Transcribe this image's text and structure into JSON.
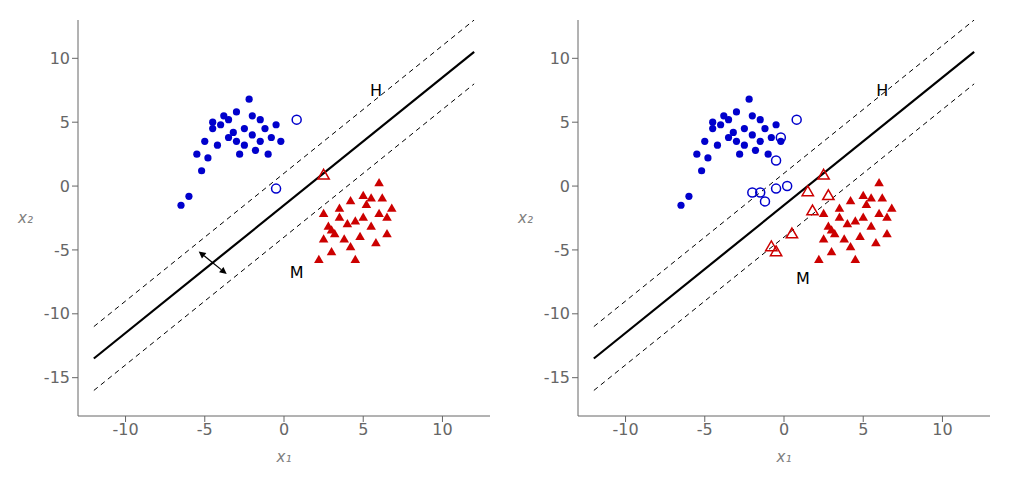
{
  "chart_data": [
    {
      "type": "scatter",
      "xlabel": "x₁",
      "ylabel": "x₂",
      "xlim": [
        -13,
        13
      ],
      "ylim": [
        -18,
        13
      ],
      "xticks": [
        -10,
        -5,
        0,
        5,
        10
      ],
      "yticks": [
        -15,
        -10,
        -5,
        0,
        5,
        10
      ],
      "grid": false,
      "series": [
        {
          "type": "line",
          "color": "#000000",
          "line_style": "solid",
          "values": [
            [
              -12,
              -13.5
            ],
            [
              12,
              10.5
            ]
          ]
        },
        {
          "type": "line",
          "color": "#000000",
          "line_style": "dashed",
          "values": [
            [
              -12,
              -11.0
            ],
            [
              12,
              13.0
            ]
          ]
        },
        {
          "type": "line",
          "color": "#000000",
          "line_style": "dashed",
          "values": [
            [
              -12,
              -16.0
            ],
            [
              12,
              8.0
            ]
          ]
        },
        {
          "type": "scatter",
          "color": "#0000CC",
          "marker": "circle",
          "values": [
            [
              -6.5,
              -1.5
            ],
            [
              -6.0,
              -0.8
            ],
            [
              -5.5,
              2.5
            ],
            [
              -5.2,
              1.2
            ],
            [
              -5.0,
              3.5
            ],
            [
              -4.8,
              2.2
            ],
            [
              -4.5,
              4.5
            ],
            [
              -4.5,
              5.0
            ],
            [
              -4.2,
              3.2
            ],
            [
              -4.0,
              4.8
            ],
            [
              -3.8,
              5.5
            ],
            [
              -3.5,
              3.8
            ],
            [
              -3.5,
              5.2
            ],
            [
              -3.2,
              4.2
            ],
            [
              -3.0,
              3.5
            ],
            [
              -3.0,
              5.8
            ],
            [
              -2.8,
              2.5
            ],
            [
              -2.5,
              4.5
            ],
            [
              -2.5,
              3.2
            ],
            [
              -2.2,
              6.8
            ],
            [
              -2.0,
              5.5
            ],
            [
              -2.0,
              4.0
            ],
            [
              -1.8,
              2.8
            ],
            [
              -1.5,
              5.2
            ],
            [
              -1.5,
              3.5
            ],
            [
              -1.2,
              4.5
            ],
            [
              -1.0,
              2.5
            ],
            [
              -0.8,
              3.8
            ],
            [
              -0.5,
              4.8
            ],
            [
              -0.2,
              3.5
            ]
          ]
        },
        {
          "type": "scatter",
          "color": "#CC0000",
          "marker": "triangle",
          "values": [
            [
              2.2,
              -5.8
            ],
            [
              2.5,
              -4.2
            ],
            [
              2.8,
              -3.2
            ],
            [
              3.0,
              -5.2
            ],
            [
              3.2,
              -3.8
            ],
            [
              3.5,
              -2.5
            ],
            [
              3.8,
              -4.2
            ],
            [
              4.0,
              -3.0
            ],
            [
              4.2,
              -4.8
            ],
            [
              4.5,
              -2.8
            ],
            [
              4.8,
              -4.0
            ],
            [
              5.0,
              -2.5
            ],
            [
              5.2,
              -1.5
            ],
            [
              5.5,
              -3.2
            ],
            [
              5.8,
              -4.5
            ],
            [
              6.0,
              -2.2
            ],
            [
              6.2,
              -1.0
            ],
            [
              6.5,
              -2.5
            ],
            [
              6.5,
              -3.8
            ],
            [
              6.8,
              -1.8
            ],
            [
              3.5,
              -1.8
            ],
            [
              5.0,
              -0.8
            ],
            [
              4.2,
              -1.2
            ],
            [
              6.0,
              0.2
            ],
            [
              5.5,
              -1.0
            ],
            [
              3.0,
              -3.5
            ],
            [
              2.5,
              -2.2
            ],
            [
              4.5,
              -5.8
            ]
          ]
        },
        {
          "type": "scatter",
          "color": "#0000CC",
          "marker": "open_circle",
          "values": [
            [
              -0.5,
              -0.2
            ],
            [
              0.8,
              5.2
            ]
          ]
        },
        {
          "type": "scatter",
          "color": "#CC0000",
          "marker": "open_triangle",
          "values": [
            [
              2.5,
              0.8
            ]
          ]
        }
      ],
      "annotations": [
        {
          "text": "H",
          "x": 5.8,
          "y": 7.5
        },
        {
          "text": "M",
          "x": 0.8,
          "y": -6.8
        }
      ],
      "arrows": [
        {
          "from": [
            -4.5,
            -6.0
          ],
          "to": [
            -5.383883476483184,
            -5.116116523516816
          ]
        },
        {
          "from": [
            -4.5,
            -6.0
          ],
          "to": [
            -3.616116523516816,
            -6.883883476483184
          ]
        }
      ]
    },
    {
      "type": "scatter",
      "xlabel": "x₁",
      "ylabel": "x₂",
      "xlim": [
        -13,
        13
      ],
      "ylim": [
        -18,
        13
      ],
      "xticks": [
        -10,
        -5,
        0,
        5,
        10
      ],
      "yticks": [
        -15,
        -10,
        -5,
        0,
        5,
        10
      ],
      "grid": false,
      "series": [
        {
          "type": "line",
          "color": "#000000",
          "line_style": "solid",
          "values": [
            [
              -12,
              -13.5
            ],
            [
              12,
              10.5
            ]
          ]
        },
        {
          "type": "line",
          "color": "#000000",
          "line_style": "dashed",
          "values": [
            [
              -12,
              -11.0
            ],
            [
              12,
              13.0
            ]
          ]
        },
        {
          "type": "line",
          "color": "#000000",
          "line_style": "dashed",
          "values": [
            [
              -12,
              -16.0
            ],
            [
              12,
              8.0
            ]
          ]
        },
        {
          "type": "scatter",
          "color": "#0000CC",
          "marker": "circle",
          "values": [
            [
              -6.5,
              -1.5
            ],
            [
              -6.0,
              -0.8
            ],
            [
              -5.5,
              2.5
            ],
            [
              -5.2,
              1.2
            ],
            [
              -5.0,
              3.5
            ],
            [
              -4.8,
              2.2
            ],
            [
              -4.5,
              4.5
            ],
            [
              -4.5,
              5.0
            ],
            [
              -4.2,
              3.2
            ],
            [
              -4.0,
              4.8
            ],
            [
              -3.8,
              5.5
            ],
            [
              -3.5,
              3.8
            ],
            [
              -3.5,
              5.2
            ],
            [
              -3.2,
              4.2
            ],
            [
              -3.0,
              3.5
            ],
            [
              -3.0,
              5.8
            ],
            [
              -2.8,
              2.5
            ],
            [
              -2.5,
              4.5
            ],
            [
              -2.5,
              3.2
            ],
            [
              -2.2,
              6.8
            ],
            [
              -2.0,
              5.5
            ],
            [
              -2.0,
              4.0
            ],
            [
              -1.8,
              2.8
            ],
            [
              -1.5,
              5.2
            ],
            [
              -1.5,
              3.5
            ],
            [
              -1.2,
              4.5
            ],
            [
              -1.0,
              2.5
            ],
            [
              -0.8,
              3.8
            ],
            [
              -0.5,
              4.8
            ],
            [
              -0.2,
              3.5
            ]
          ]
        },
        {
          "type": "scatter",
          "color": "#CC0000",
          "marker": "triangle",
          "values": [
            [
              2.2,
              -5.8
            ],
            [
              2.5,
              -4.2
            ],
            [
              2.8,
              -3.2
            ],
            [
              3.0,
              -5.2
            ],
            [
              3.2,
              -3.8
            ],
            [
              3.5,
              -2.5
            ],
            [
              3.8,
              -4.2
            ],
            [
              4.0,
              -3.0
            ],
            [
              4.2,
              -4.8
            ],
            [
              4.5,
              -2.8
            ],
            [
              4.8,
              -4.0
            ],
            [
              5.0,
              -2.5
            ],
            [
              5.2,
              -1.5
            ],
            [
              5.5,
              -3.2
            ],
            [
              5.8,
              -4.5
            ],
            [
              6.0,
              -2.2
            ],
            [
              6.2,
              -1.0
            ],
            [
              6.5,
              -2.5
            ],
            [
              6.5,
              -3.8
            ],
            [
              6.8,
              -1.8
            ],
            [
              3.5,
              -1.8
            ],
            [
              5.0,
              -0.8
            ],
            [
              4.2,
              -1.2
            ],
            [
              6.0,
              0.2
            ],
            [
              5.5,
              -1.0
            ],
            [
              3.0,
              -3.5
            ],
            [
              2.5,
              -2.2
            ],
            [
              4.5,
              -5.8
            ]
          ]
        },
        {
          "type": "scatter",
          "color": "#0000CC",
          "marker": "open_circle",
          "values": [
            [
              -0.5,
              -0.2
            ],
            [
              0.8,
              5.2
            ],
            [
              -1.5,
              -0.5
            ],
            [
              -0.2,
              3.8
            ],
            [
              -0.5,
              2.0
            ],
            [
              0.2,
              0.0
            ],
            [
              -1.2,
              -1.2
            ],
            [
              -2.0,
              -0.5
            ]
          ]
        },
        {
          "type": "scatter",
          "color": "#CC0000",
          "marker": "open_triangle",
          "values": [
            [
              2.5,
              0.8
            ],
            [
              1.5,
              -0.5
            ],
            [
              2.8,
              -0.8
            ],
            [
              1.8,
              -2.0
            ],
            [
              -0.5,
              -5.2
            ],
            [
              -0.8,
              -4.8
            ],
            [
              0.5,
              -3.8
            ]
          ]
        }
      ],
      "annotations": [
        {
          "text": "H",
          "x": 6.2,
          "y": 7.5
        },
        {
          "text": "M",
          "x": 1.2,
          "y": -7.2
        }
      ]
    }
  ]
}
